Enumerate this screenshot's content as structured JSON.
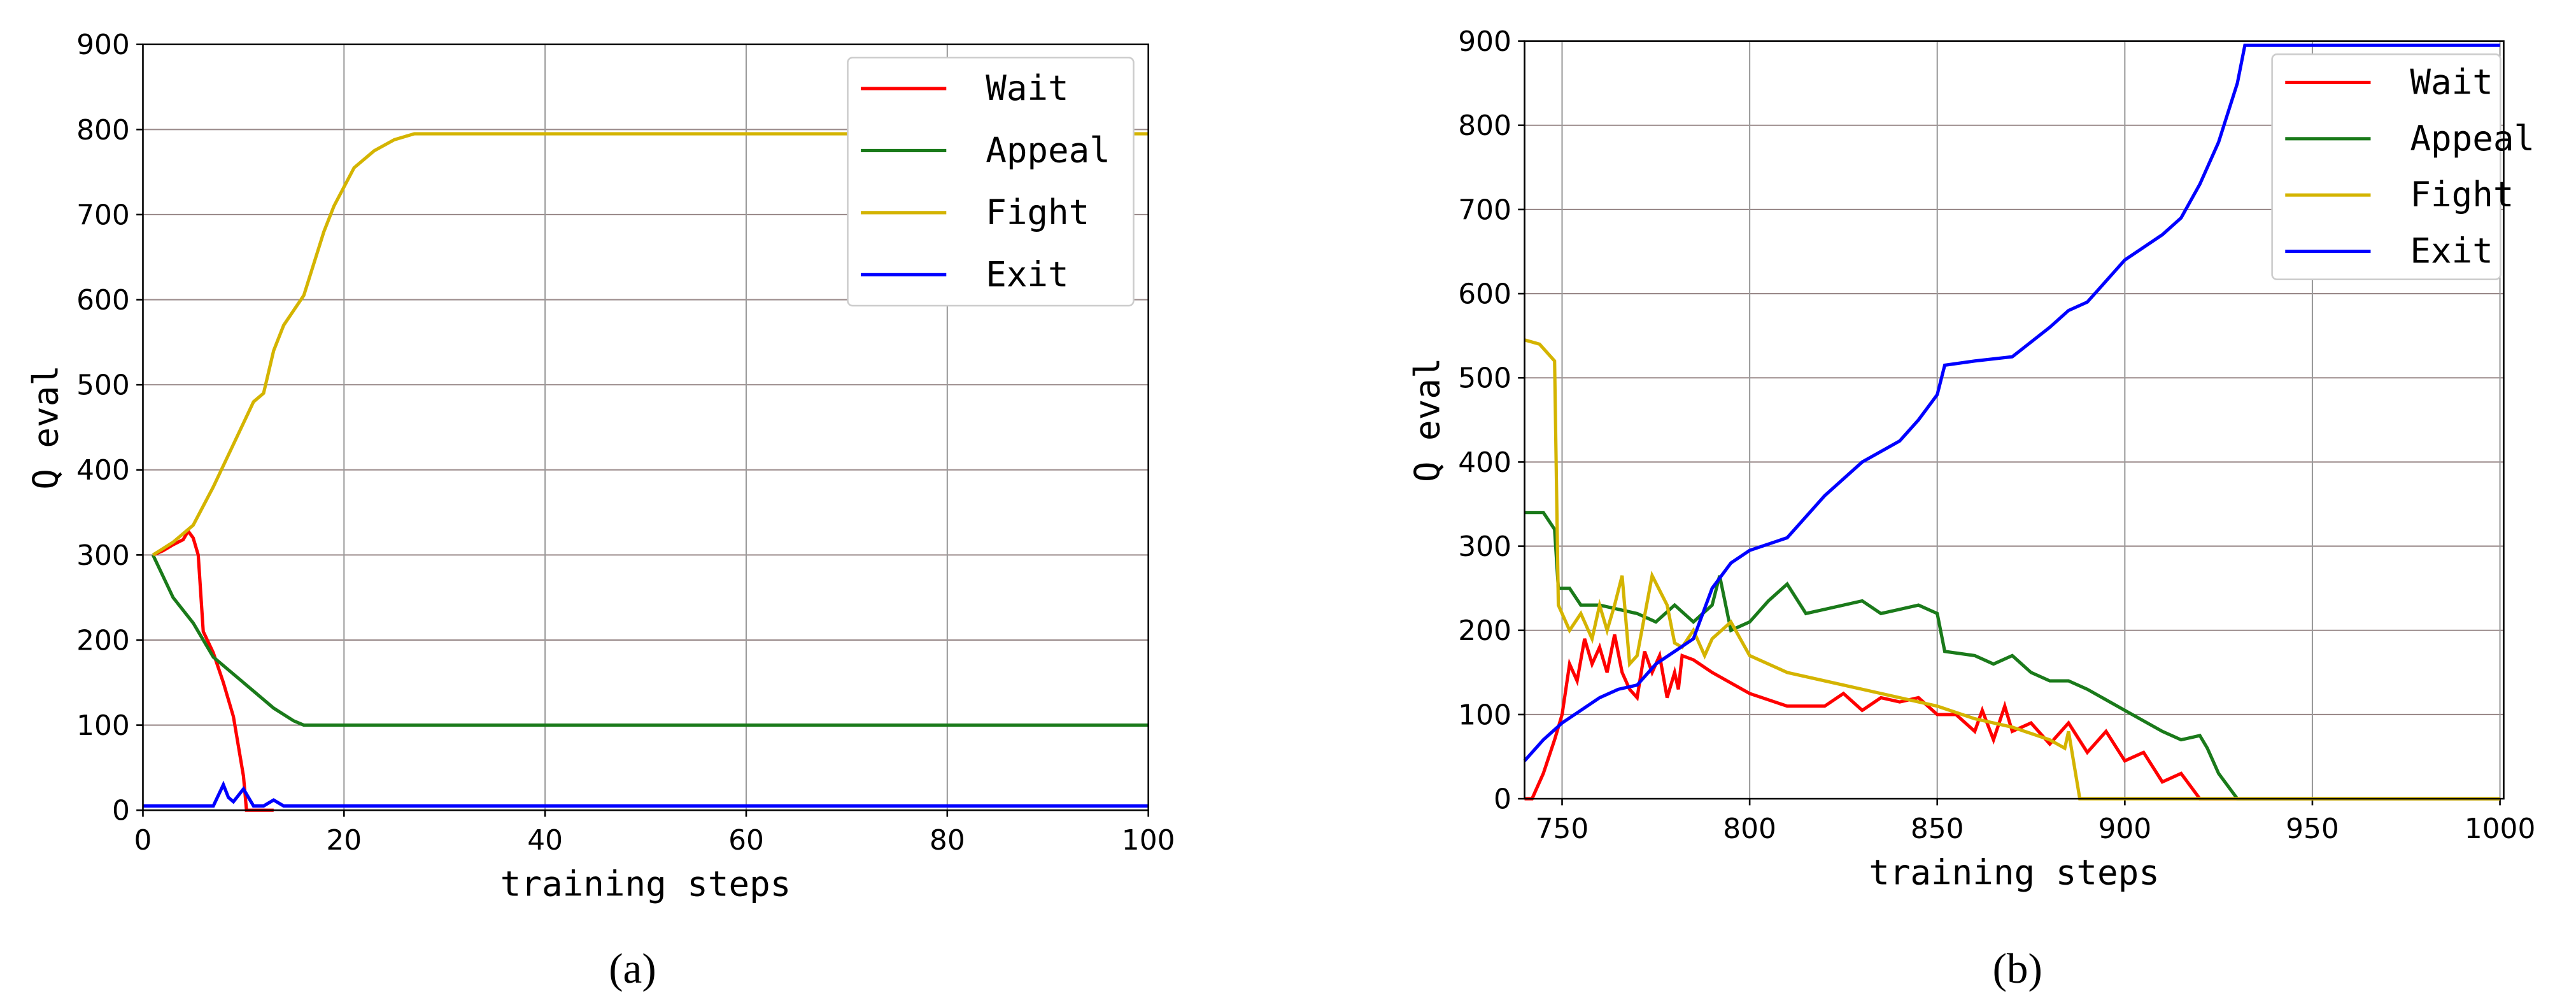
{
  "chart_data": [
    {
      "type": "line",
      "label": "(a)",
      "xlabel": "training steps",
      "ylabel": "Q eval",
      "xlim": [
        0,
        100
      ],
      "ylim": [
        0,
        900
      ],
      "xticks": [
        0,
        20,
        40,
        60,
        80,
        100
      ],
      "yticks": [
        0,
        100,
        200,
        300,
        400,
        500,
        600,
        700,
        800,
        900
      ],
      "grid": true,
      "legend": "upper right",
      "series": [
        {
          "name": "Wait",
          "color": "#ff0000",
          "x": [
            1,
            2,
            3,
            4,
            4.5,
            5,
            5.5,
            6,
            7,
            8,
            9,
            10,
            10.3,
            13
          ],
          "values": [
            300,
            305,
            312,
            318,
            328,
            320,
            300,
            210,
            185,
            150,
            110,
            40,
            0,
            0
          ]
        },
        {
          "name": "Appeal",
          "color": "#1a7a1a",
          "x": [
            1,
            3,
            5,
            7,
            9,
            11,
            13,
            15,
            16,
            100
          ],
          "values": [
            300,
            250,
            220,
            180,
            160,
            140,
            120,
            105,
            100,
            100
          ]
        },
        {
          "name": "Fight",
          "color": "#d4b400",
          "x": [
            1,
            3,
            5,
            7,
            9,
            11,
            12,
            13,
            14,
            16,
            18,
            19,
            21,
            23,
            25,
            27,
            100
          ],
          "values": [
            300,
            315,
            335,
            380,
            430,
            480,
            490,
            540,
            570,
            605,
            680,
            710,
            755,
            775,
            788,
            795,
            795
          ]
        },
        {
          "name": "Exit",
          "color": "#0000ff",
          "x": [
            0,
            7,
            8,
            8.5,
            9,
            10,
            11,
            12,
            13,
            14,
            100
          ],
          "values": [
            5,
            5,
            30,
            15,
            10,
            25,
            5,
            5,
            12,
            5,
            5
          ]
        }
      ]
    },
    {
      "type": "line",
      "label": "(b)",
      "xlabel": "training steps",
      "ylabel": "Q eval",
      "xlim": [
        740,
        1001
      ],
      "ylim": [
        0,
        900
      ],
      "xticks": [
        750,
        800,
        850,
        900,
        950,
        1000
      ],
      "yticks": [
        0,
        100,
        200,
        300,
        400,
        500,
        600,
        700,
        800,
        900
      ],
      "grid": true,
      "legend": "upper right",
      "series": [
        {
          "name": "Wait",
          "color": "#ff0000",
          "x": [
            740,
            742,
            745,
            748,
            750,
            752,
            754,
            756,
            758,
            760,
            762,
            764,
            766,
            768,
            770,
            772,
            774,
            776,
            778,
            780,
            781,
            782,
            785,
            790,
            800,
            810,
            820,
            825,
            830,
            835,
            840,
            845,
            850,
            855,
            860,
            862,
            865,
            868,
            870,
            875,
            880,
            885,
            890,
            895,
            900,
            905,
            910,
            915,
            920,
            1000
          ],
          "values": [
            0,
            0,
            30,
            70,
            100,
            160,
            140,
            190,
            160,
            180,
            150,
            195,
            150,
            130,
            120,
            175,
            150,
            170,
            120,
            150,
            130,
            170,
            165,
            150,
            125,
            110,
            110,
            125,
            105,
            120,
            115,
            120,
            100,
            100,
            80,
            105,
            70,
            110,
            80,
            90,
            65,
            90,
            55,
            80,
            45,
            55,
            20,
            30,
            0,
            0
          ]
        },
        {
          "name": "Appeal",
          "color": "#1a7a1a",
          "x": [
            740,
            745,
            748,
            749,
            752,
            755,
            760,
            770,
            775,
            780,
            785,
            790,
            792,
            795,
            800,
            805,
            810,
            815,
            820,
            825,
            830,
            835,
            840,
            845,
            850,
            852,
            860,
            865,
            870,
            875,
            880,
            885,
            890,
            900,
            910,
            915,
            920,
            922,
            925,
            930,
            1000
          ],
          "values": [
            340,
            340,
            320,
            250,
            250,
            230,
            230,
            220,
            210,
            230,
            210,
            230,
            265,
            200,
            210,
            235,
            255,
            220,
            225,
            230,
            235,
            220,
            225,
            230,
            220,
            175,
            170,
            160,
            170,
            150,
            140,
            140,
            130,
            105,
            80,
            70,
            75,
            60,
            30,
            0,
            0
          ]
        },
        {
          "name": "Fight",
          "color": "#d4b400",
          "x": [
            740,
            744,
            748,
            749,
            752,
            755,
            758,
            760,
            762,
            764,
            766,
            768,
            770,
            774,
            778,
            780,
            782,
            785,
            788,
            790,
            795,
            800,
            810,
            820,
            830,
            840,
            850,
            860,
            870,
            880,
            884,
            885,
            888,
            1000
          ],
          "values": [
            545,
            540,
            520,
            230,
            200,
            220,
            190,
            230,
            200,
            230,
            265,
            160,
            170,
            265,
            230,
            185,
            180,
            200,
            170,
            190,
            210,
            170,
            150,
            140,
            130,
            120,
            110,
            95,
            85,
            70,
            60,
            80,
            0,
            0
          ]
        },
        {
          "name": "Exit",
          "color": "#0000ff",
          "x": [
            740,
            745,
            750,
            755,
            760,
            765,
            770,
            775,
            780,
            785,
            790,
            795,
            800,
            810,
            820,
            830,
            840,
            845,
            850,
            852,
            860,
            870,
            880,
            885,
            890,
            900,
            910,
            915,
            920,
            925,
            930,
            932,
            1000
          ],
          "values": [
            45,
            70,
            90,
            105,
            120,
            130,
            135,
            160,
            175,
            190,
            250,
            280,
            295,
            310,
            360,
            400,
            425,
            450,
            480,
            515,
            520,
            525,
            560,
            580,
            590,
            640,
            670,
            690,
            730,
            780,
            850,
            895,
            895
          ]
        }
      ]
    }
  ]
}
